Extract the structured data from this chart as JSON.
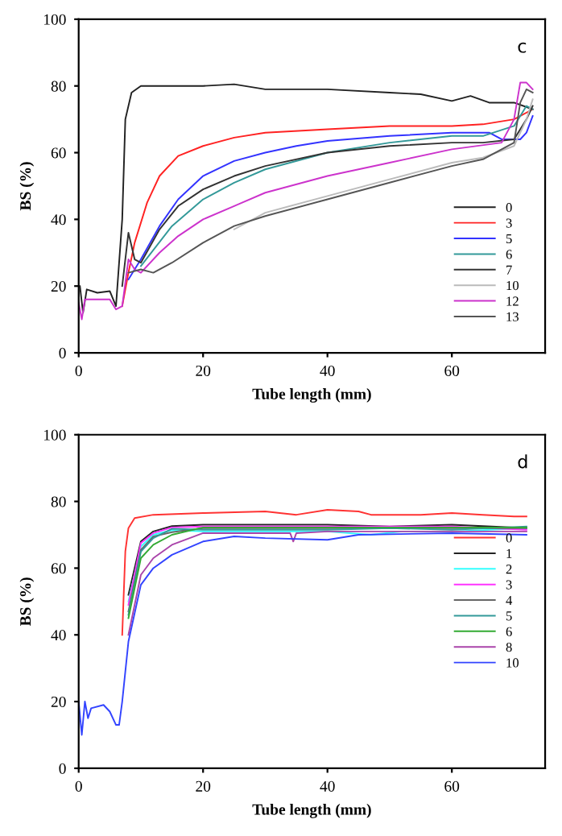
{
  "chart_data": [
    {
      "type": "line",
      "xlabel": "Tube length (mm)",
      "ylabel": "BS (%)",
      "annotations": [
        "c"
      ],
      "xlim": [
        0,
        75
      ],
      "ylim": [
        0,
        100
      ],
      "xticks": [
        0,
        20,
        40,
        60
      ],
      "yticks": [
        0,
        20,
        40,
        60,
        80,
        100
      ],
      "grid": false,
      "legend": "bottom right",
      "line_style": "solid",
      "marker": "none",
      "series": [
        {
          "name": "0",
          "color": "#222222",
          "x": [
            0.2,
            0.7,
            1.3,
            3,
            5,
            6,
            7,
            7.5,
            8.5,
            10,
            20,
            25,
            30,
            40,
            50,
            55,
            60,
            63,
            66,
            70,
            73
          ],
          "values": [
            20,
            12,
            19,
            18,
            18.5,
            14,
            40,
            70,
            78,
            80,
            80,
            80.5,
            79,
            79,
            78,
            77.5,
            75.5,
            77,
            75,
            75,
            73
          ]
        },
        {
          "name": "3",
          "color": "#ff2222",
          "x": [
            7,
            8,
            9,
            11,
            13,
            16,
            20,
            25,
            30,
            40,
            50,
            60,
            65,
            70,
            73
          ],
          "values": [
            14,
            24,
            33,
            45,
            53,
            59,
            62,
            64.5,
            66,
            67,
            68,
            68,
            68.5,
            70,
            73
          ]
        },
        {
          "name": "5",
          "color": "#3333ff",
          "x": [
            8,
            10,
            13,
            16,
            20,
            25,
            30,
            35,
            40,
            50,
            60,
            66,
            68,
            71,
            72,
            73
          ],
          "values": [
            22,
            28,
            38,
            46,
            53,
            57.5,
            60,
            62,
            63.5,
            65,
            66,
            66,
            64,
            64,
            66,
            71
          ]
        },
        {
          "name": "6",
          "color": "#339999",
          "x": [
            10,
            15,
            20,
            25,
            30,
            40,
            50,
            60,
            65,
            70,
            72,
            73
          ],
          "values": [
            26,
            38,
            46,
            51,
            55,
            60,
            63,
            65,
            65,
            68,
            74,
            73
          ]
        },
        {
          "name": "7",
          "color": "#333333",
          "x": [
            7,
            8,
            9,
            10,
            13,
            16,
            20,
            25,
            30,
            40,
            50,
            60,
            65,
            70,
            72,
            73
          ],
          "values": [
            20,
            36,
            28,
            27,
            37,
            44,
            49,
            53,
            56,
            60,
            62,
            63,
            63,
            64,
            70,
            74
          ]
        },
        {
          "name": "10",
          "color": "#bbbbbb",
          "x": [
            25,
            30,
            40,
            50,
            60,
            65,
            70,
            72,
            73
          ],
          "values": [
            37,
            42,
            47,
            52,
            57,
            58.5,
            62,
            70,
            76
          ]
        },
        {
          "name": "12",
          "color": "#cc33cc",
          "x": [
            0,
            0.5,
            1,
            3,
            5,
            6,
            7,
            8,
            9,
            10,
            13,
            16,
            20,
            25,
            30,
            40,
            50,
            60,
            68,
            70,
            71,
            72,
            73
          ],
          "values": [
            15,
            10,
            16,
            16,
            16,
            13,
            14,
            28,
            25,
            24,
            30,
            35,
            40,
            44,
            48,
            53,
            57,
            61,
            63,
            70,
            81,
            81,
            79
          ]
        },
        {
          "name": "13",
          "color": "#555555",
          "x": [
            8,
            10,
            12,
            15,
            20,
            25,
            30,
            40,
            50,
            60,
            65,
            70,
            71,
            72,
            73
          ],
          "values": [
            24,
            25,
            24,
            27,
            33,
            38,
            41,
            46,
            51,
            56,
            58,
            63,
            75,
            79,
            78
          ]
        }
      ]
    },
    {
      "type": "line",
      "xlabel": "Tube length (mm)",
      "ylabel": "BS (%)",
      "annotations": [
        "d"
      ],
      "xlim": [
        0,
        75
      ],
      "ylim": [
        0,
        100
      ],
      "xticks": [
        0,
        20,
        40,
        60
      ],
      "yticks": [
        0,
        20,
        40,
        60,
        80,
        100
      ],
      "grid": false,
      "legend": "right",
      "line_style": "solid",
      "marker": "none",
      "series": [
        {
          "name": "0",
          "color": "#ff3333",
          "x": [
            7,
            7.5,
            8,
            9,
            12,
            20,
            30,
            35,
            40,
            45,
            47,
            55,
            60,
            65,
            70,
            72
          ],
          "values": [
            40,
            65,
            72,
            75,
            76,
            76.5,
            77,
            76,
            77.5,
            77,
            76,
            76,
            76.5,
            76,
            75.5,
            75.5
          ]
        },
        {
          "name": "1",
          "color": "#222222",
          "x": [
            8,
            10,
            12,
            15,
            20,
            30,
            40,
            50,
            60,
            72
          ],
          "values": [
            52,
            68,
            71,
            72.6,
            73,
            73,
            73,
            72.5,
            73,
            72
          ]
        },
        {
          "name": "2",
          "color": "#33ffff",
          "x": [
            8,
            10,
            12,
            15,
            20,
            30,
            40,
            47,
            52,
            60,
            72
          ],
          "values": [
            50,
            66.5,
            70,
            71.4,
            71,
            71,
            71,
            70,
            71,
            71,
            72
          ]
        },
        {
          "name": "3",
          "color": "#ff33ff",
          "x": [
            8,
            10,
            12,
            15,
            20,
            30,
            40,
            50,
            60,
            72
          ],
          "values": [
            49,
            67.5,
            70.5,
            72.2,
            72.5,
            72.5,
            72.5,
            72.5,
            72.5,
            71.5
          ]
        },
        {
          "name": "4",
          "color": "#666666",
          "x": [
            8,
            10,
            12,
            15,
            20,
            30,
            40,
            50,
            60,
            72
          ],
          "values": [
            47,
            65.5,
            69.5,
            70.8,
            72,
            72,
            72,
            72,
            72,
            72
          ]
        },
        {
          "name": "5",
          "color": "#339999",
          "x": [
            8,
            10,
            12,
            15,
            20,
            30,
            40,
            50,
            60,
            72
          ],
          "values": [
            46,
            65,
            69,
            71.8,
            71.5,
            71.5,
            71.5,
            72,
            71.5,
            72.5
          ]
        },
        {
          "name": "6",
          "color": "#33aa33",
          "x": [
            8,
            10,
            12,
            15,
            20,
            30,
            40,
            60,
            72
          ],
          "values": [
            45,
            63,
            67,
            70,
            72.2,
            72.2,
            72.2,
            72.2,
            72.2
          ]
        },
        {
          "name": "8",
          "color": "#aa44aa",
          "x": [
            8,
            10,
            12,
            15,
            20,
            30,
            34,
            34.5,
            35,
            40,
            60,
            72
          ],
          "values": [
            40,
            58,
            63,
            67,
            70.5,
            70.5,
            70.5,
            68,
            70.5,
            71,
            71,
            71
          ]
        },
        {
          "name": "10",
          "color": "#3344ff",
          "x": [
            0,
            0.5,
            1,
            1.5,
            2,
            4,
            5,
            6,
            6.5,
            7,
            8,
            10,
            12,
            15,
            20,
            25,
            30,
            40,
            45,
            60,
            72
          ],
          "values": [
            20,
            10,
            20,
            15,
            18,
            19,
            17,
            13,
            13,
            20,
            38,
            55,
            60,
            64,
            68,
            69.5,
            69,
            68.5,
            70,
            70.5,
            70
          ]
        }
      ]
    }
  ]
}
